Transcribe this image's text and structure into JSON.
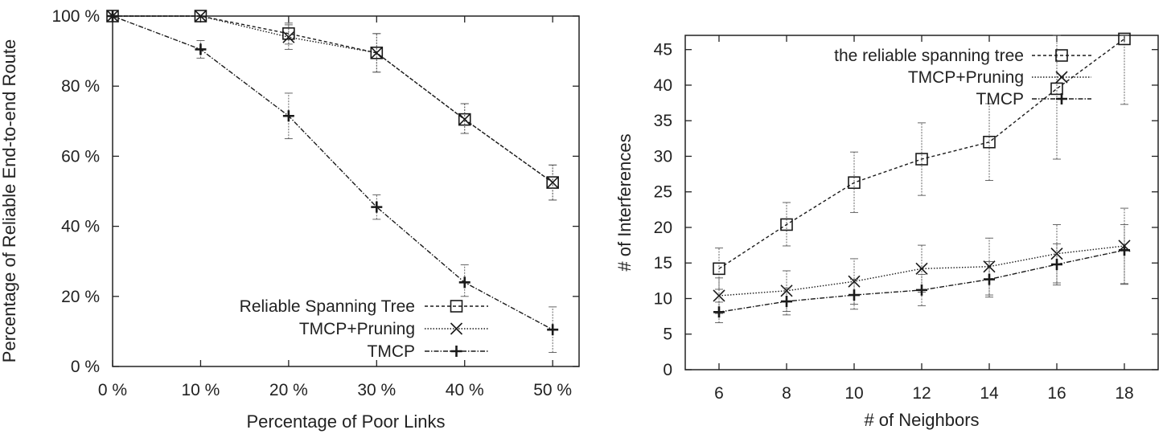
{
  "chart_data": [
    {
      "type": "line",
      "title": "",
      "xlabel": "Percentage of Poor Links",
      "ylabel": "Percentage of Reliable End-to-end Route",
      "categories": [
        "0 %",
        "10 %",
        "20 %",
        "30 %",
        "40 %",
        "50 %"
      ],
      "x": [
        0,
        10,
        20,
        30,
        40,
        50
      ],
      "xlim": [
        0,
        53
      ],
      "ylim": [
        0,
        100
      ],
      "yticks": [
        0,
        20,
        40,
        60,
        80,
        100
      ],
      "ytick_labels": [
        "0 %",
        "20 %",
        "40 %",
        "60 %",
        "80 %",
        "100 %"
      ],
      "grid": false,
      "legend_position": "bottom-right",
      "series": [
        {
          "name": "Reliable Spanning Tree",
          "marker": "square",
          "dash": "4,3",
          "values": [
            100,
            100,
            95,
            89.5,
            70.5,
            52.5
          ],
          "err_low": [
            100,
            100,
            92,
            84,
            66.5,
            47.5
          ],
          "err_high": [
            100,
            100,
            98,
            95,
            75,
            57.5
          ]
        },
        {
          "name": "TMCP+Pruning",
          "marker": "x",
          "dash": "1.5,2",
          "values": [
            100,
            100,
            94,
            89.5,
            70.5,
            52.5
          ],
          "err_low": [
            100,
            100,
            90.5,
            84,
            66.5,
            47.5
          ],
          "err_high": [
            100,
            100,
            97.5,
            95,
            75,
            57.5
          ]
        },
        {
          "name": "TMCP",
          "marker": "plus",
          "dash": "6,2,1.5,2",
          "values": [
            100,
            90.5,
            71.5,
            45.5,
            24,
            10.5
          ],
          "err_low": [
            100,
            88,
            65,
            42,
            20,
            4
          ],
          "err_high": [
            100,
            93,
            78,
            49,
            29,
            17
          ]
        }
      ]
    },
    {
      "type": "line",
      "title": "",
      "xlabel": "# of Neighbors",
      "ylabel": "# of Interferences",
      "x": [
        6,
        8,
        10,
        12,
        14,
        16,
        18
      ],
      "xticks": [
        6,
        8,
        10,
        12,
        14,
        16,
        18
      ],
      "xlim": [
        5,
        19
      ],
      "ylim": [
        0,
        47
      ],
      "yticks": [
        0,
        5,
        10,
        15,
        20,
        25,
        30,
        35,
        40,
        45
      ],
      "grid": false,
      "legend_position": "top-right",
      "series": [
        {
          "name": "the reliable spanning tree",
          "marker": "square",
          "dash": "4,3",
          "values": [
            14.2,
            20.4,
            26.3,
            29.6,
            32,
            39.5,
            46.5
          ],
          "err_low": [
            11.3,
            17.4,
            22.1,
            24.5,
            26.6,
            29.6,
            37.3
          ],
          "err_high": [
            17.1,
            23.5,
            30.6,
            34.7,
            37.4,
            47,
            47
          ]
        },
        {
          "name": "TMCP+Pruning",
          "marker": "x",
          "dash": "1.5,2",
          "values": [
            10.4,
            11.1,
            12.4,
            14.2,
            14.5,
            16.3,
            17.4
          ],
          "err_low": [
            7.9,
            8.2,
            9.2,
            10.9,
            10.5,
            12.2,
            12.1
          ],
          "err_high": [
            12.9,
            13.9,
            15.6,
            17.5,
            18.5,
            20.4,
            22.7
          ]
        },
        {
          "name": "TMCP",
          "marker": "plus",
          "dash": "6,2,1.5,2",
          "values": [
            8.1,
            9.6,
            10.5,
            11.2,
            12.7,
            14.8,
            16.8
          ],
          "err_low": [
            6.6,
            7.7,
            8.5,
            9,
            10.2,
            11.9,
            12
          ],
          "err_high": [
            9.5,
            11.5,
            12.7,
            13.4,
            15.2,
            17.7,
            20.4
          ]
        }
      ]
    }
  ]
}
